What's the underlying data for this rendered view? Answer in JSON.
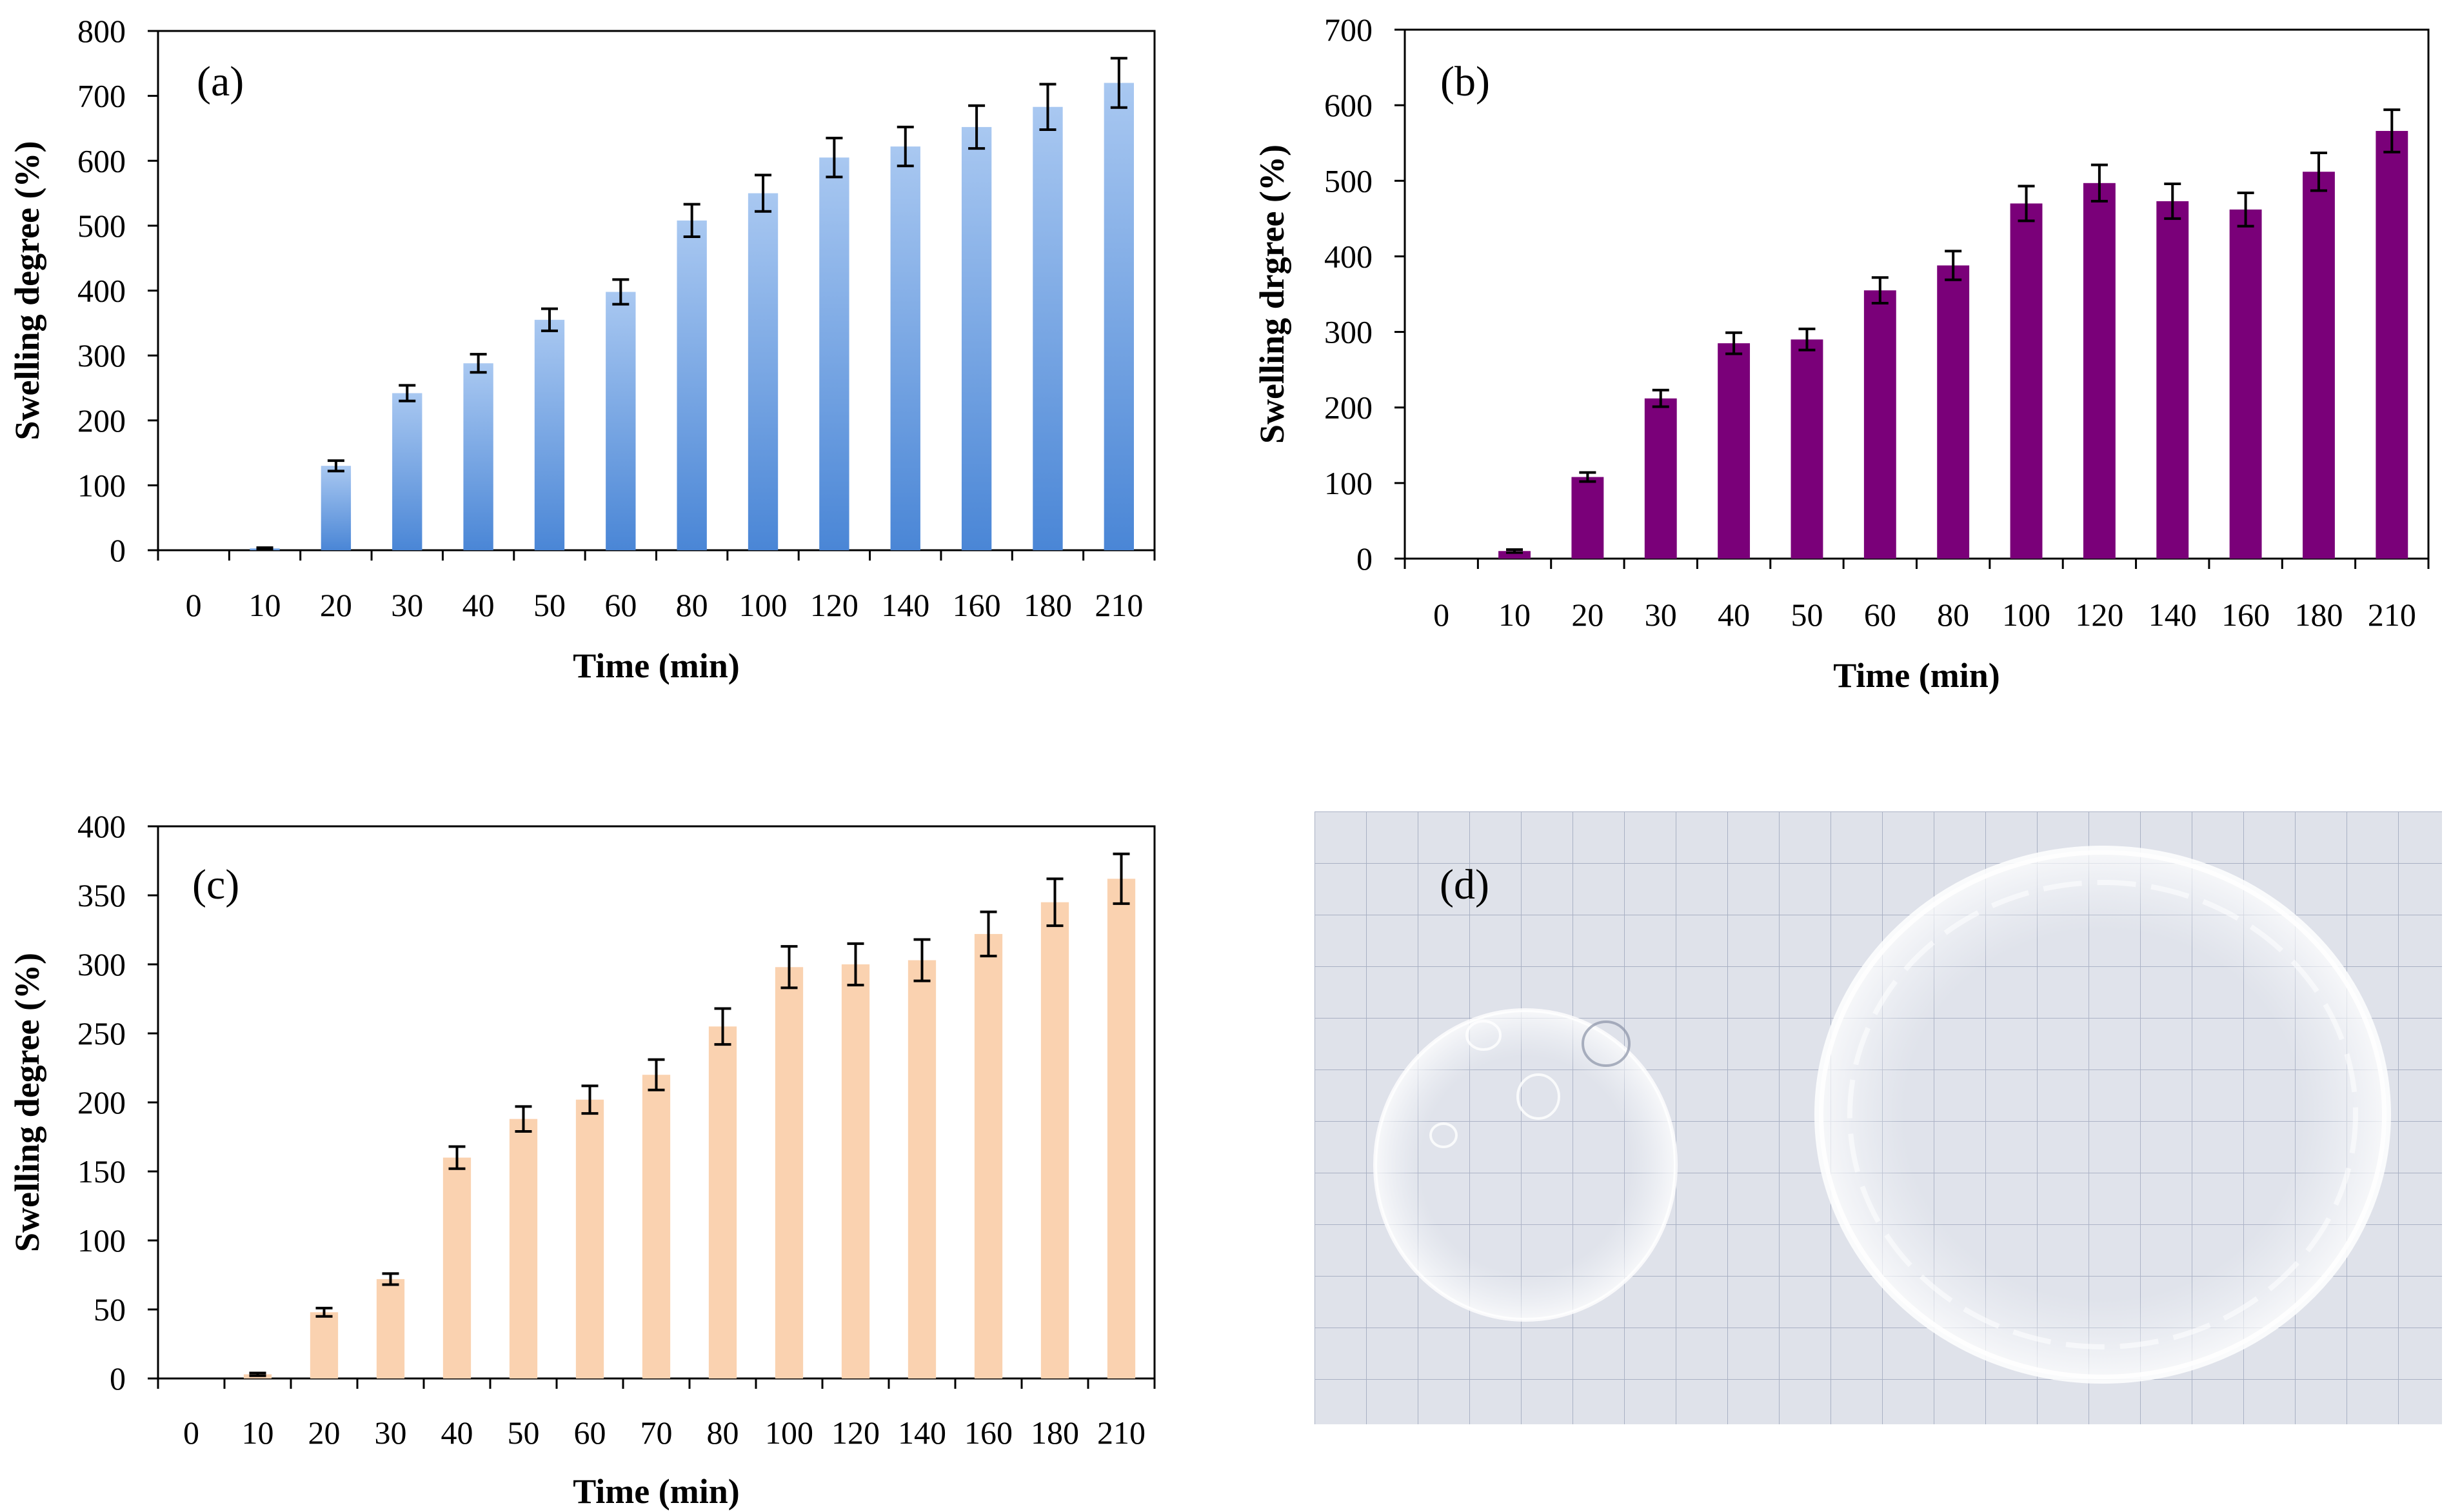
{
  "chart_data": [
    {
      "type": "bar",
      "panel_label": "(a)",
      "xlabel": "Time (min)",
      "ylabel": "Swelling degree (%)",
      "ylim": [
        0,
        800
      ],
      "yticks": [
        0,
        100,
        200,
        300,
        400,
        500,
        600,
        700,
        800
      ],
      "categories": [
        "0",
        "10",
        "20",
        "30",
        "40",
        "50",
        "60",
        "80",
        "100",
        "120",
        "140",
        "160",
        "180",
        "210"
      ],
      "values": [
        0,
        3,
        130,
        242,
        288,
        355,
        398,
        508,
        550,
        605,
        622,
        652,
        683,
        720
      ],
      "errors": [
        0,
        1,
        8,
        12,
        14,
        17,
        19,
        25,
        28,
        30,
        30,
        33,
        35,
        38
      ],
      "colors": {
        "top": "#a9c8f1",
        "bottom": "#4a86d6"
      }
    },
    {
      "type": "bar",
      "panel_label": "(b)",
      "xlabel": "Time (min)",
      "ylabel": "Swelling drgree (%)",
      "ylim": [
        0,
        700
      ],
      "yticks": [
        0,
        100,
        200,
        300,
        400,
        500,
        600,
        700
      ],
      "categories": [
        "0",
        "10",
        "20",
        "30",
        "40",
        "50",
        "60",
        "80",
        "100",
        "120",
        "140",
        "160",
        "180",
        "210"
      ],
      "values": [
        0,
        10,
        108,
        212,
        285,
        290,
        355,
        388,
        470,
        497,
        473,
        462,
        512,
        566
      ],
      "errors": [
        0,
        2,
        6,
        11,
        14,
        14,
        17,
        19,
        23,
        24,
        23,
        22,
        25,
        28
      ],
      "colors": {
        "top": "#7a0079",
        "bottom": "#7a0079"
      }
    },
    {
      "type": "bar",
      "panel_label": "(c)",
      "xlabel": "Time (min)",
      "ylabel": "Swelling degree (%)",
      "ylim": [
        0,
        400
      ],
      "yticks": [
        0,
        50,
        100,
        150,
        200,
        250,
        300,
        350,
        400
      ],
      "categories": [
        "0",
        "10",
        "20",
        "30",
        "40",
        "50",
        "60",
        "70",
        "80",
        "100",
        "120",
        "140",
        "160",
        "180",
        "210"
      ],
      "values": [
        0,
        3,
        48,
        72,
        160,
        188,
        202,
        220,
        255,
        298,
        300,
        303,
        322,
        345,
        362
      ],
      "errors": [
        0,
        1,
        3,
        4,
        8,
        9,
        10,
        11,
        13,
        15,
        15,
        15,
        16,
        17,
        18
      ],
      "colors": {
        "top": "#fad2b0",
        "bottom": "#fad2b0"
      }
    }
  ],
  "photo": {
    "panel_label": "(d)",
    "colors": {
      "paper": "#dfe2ea",
      "grid": "#a9b1c4",
      "gel": "#f4f7fb"
    }
  }
}
